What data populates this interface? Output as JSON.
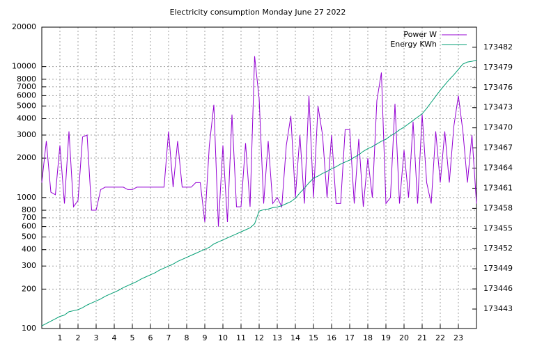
{
  "chart_data": {
    "type": "line",
    "title": "Electricity consumption Monday June 27 2022",
    "x": [
      0,
      0.25,
      0.5,
      0.75,
      1,
      1.25,
      1.5,
      1.75,
      2,
      2.25,
      2.5,
      2.75,
      3,
      3.25,
      3.5,
      3.75,
      4,
      4.25,
      4.5,
      4.75,
      5,
      5.25,
      5.5,
      5.75,
      6,
      6.25,
      6.5,
      6.75,
      7,
      7.25,
      7.5,
      7.75,
      8,
      8.25,
      8.5,
      8.75,
      9,
      9.25,
      9.5,
      9.75,
      10,
      10.25,
      10.5,
      10.75,
      11,
      11.25,
      11.5,
      11.75,
      12,
      12.25,
      12.5,
      12.75,
      13,
      13.25,
      13.5,
      13.75,
      14,
      14.25,
      14.5,
      14.75,
      15,
      15.25,
      15.5,
      15.75,
      16,
      16.25,
      16.5,
      16.75,
      17,
      17.25,
      17.5,
      17.75,
      18,
      18.25,
      18.5,
      18.75,
      19,
      19.25,
      19.5,
      19.75,
      20,
      20.25,
      20.5,
      20.75,
      21,
      21.25,
      21.5,
      21.75,
      22,
      22.25,
      22.5,
      22.75,
      23,
      23.25,
      23.5,
      23.75,
      24
    ],
    "series": [
      {
        "name": "Power W",
        "color": "#9400d3",
        "values": [
          1300,
          2700,
          1100,
          1050,
          2500,
          900,
          3200,
          850,
          950,
          2900,
          3000,
          800,
          800,
          1150,
          1200,
          1200,
          1200,
          1200,
          1200,
          1150,
          1150,
          1200,
          1200,
          1200,
          1200,
          1200,
          1200,
          1200,
          3200,
          1200,
          2700,
          1200,
          1200,
          1200,
          1300,
          1300,
          650,
          2500,
          5100,
          600,
          2500,
          650,
          4300,
          850,
          850,
          2600,
          850,
          12000,
          5700,
          900,
          2700,
          900,
          1000,
          850,
          2500,
          4200,
          1000,
          3000,
          900,
          6000,
          1000,
          5000,
          3000,
          1000,
          3000,
          900,
          900,
          3300,
          3300,
          900,
          2800,
          850,
          2000,
          1000,
          5500,
          9000,
          900,
          1000,
          5200,
          900,
          2300,
          1000,
          3800,
          900,
          4300,
          1300,
          900,
          3200,
          1300,
          3200,
          1300,
          3500,
          6000,
          3200,
          1300,
          3000,
          900
        ]
      },
      {
        "name": "Energy KWh",
        "color": "#009e73",
        "axis": "y2",
        "values": [
          173440.5,
          173440.85,
          173441.2,
          173441.55,
          173441.9,
          173442.1,
          173442.6,
          173442.75,
          173442.9,
          173443.2,
          173443.6,
          173443.9,
          173444.2,
          173444.5,
          173444.9,
          173445.2,
          173445.5,
          173445.8,
          173446.2,
          173446.5,
          173446.8,
          173447.1,
          173447.5,
          173447.8,
          173448.1,
          173448.4,
          173448.8,
          173449.1,
          173449.4,
          173449.7,
          173450.1,
          173450.4,
          173450.7,
          173451.0,
          173451.3,
          173451.6,
          173451.9,
          173452.2,
          173452.7,
          173453.0,
          173453.3,
          173453.6,
          173453.9,
          173454.2,
          173454.5,
          173454.8,
          173455.1,
          173455.7,
          173457.6,
          173457.8,
          173457.9,
          173458.1,
          173458.2,
          173458.4,
          173458.7,
          173459.0,
          173459.5,
          173460.3,
          173461.0,
          173461.8,
          173462.5,
          173462.8,
          173463.2,
          173463.5,
          173463.9,
          173464.2,
          173464.6,
          173464.9,
          173465.2,
          173465.6,
          173466.0,
          173466.5,
          173466.9,
          173467.2,
          173467.6,
          173468.0,
          173468.3,
          173468.8,
          173469.2,
          173469.7,
          173470.1,
          173470.6,
          173471.1,
          173471.6,
          173472.1,
          173472.9,
          173473.8,
          173474.7,
          173475.6,
          173476.4,
          173477.2,
          173477.9,
          173478.7,
          173479.5,
          173479.8,
          173479.9,
          173480.1
        ]
      }
    ],
    "xlim": [
      0,
      24
    ],
    "xticks": [
      1,
      2,
      3,
      4,
      5,
      6,
      7,
      8,
      9,
      10,
      11,
      12,
      13,
      14,
      15,
      16,
      17,
      18,
      19,
      20,
      21,
      22,
      23
    ],
    "ylim": [
      100,
      20000
    ],
    "ylog": true,
    "yticks": [
      100,
      200,
      300,
      400,
      500,
      600,
      700,
      800,
      1000,
      2000,
      3000,
      4000,
      5000,
      6000,
      7000,
      8000,
      10000,
      20000
    ],
    "y2lim": [
      173440.1,
      173485
    ],
    "y2ticks": [
      173443,
      173446,
      173449,
      173452,
      173455,
      173458,
      173461,
      173464,
      173467,
      173470,
      173473,
      173476,
      173479,
      173482
    ],
    "grid": true,
    "legend": "top-right"
  }
}
